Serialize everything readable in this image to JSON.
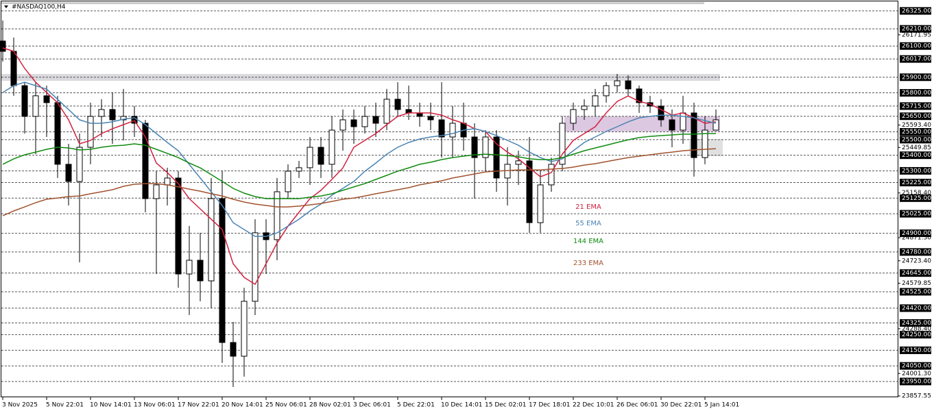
{
  "chart_data": {
    "type": "candlestick",
    "title": "#NASDAQ100,H4",
    "ylim": [
      23849,
      26373
    ],
    "categories": [
      "3 Nov 2025",
      null,
      null,
      null,
      "5 Nov 22:01",
      null,
      null,
      null,
      "10 Nov 14:01",
      null,
      null,
      null,
      "13 Nov 06:01",
      null,
      null,
      null,
      "17 Nov 22:01",
      null,
      null,
      null,
      "20 Nov 14:01",
      null,
      null,
      null,
      "25 Nov 06:01",
      null,
      null,
      null,
      "28 Nov 02:01",
      null,
      null,
      null,
      "3 Dec 06:01",
      null,
      null,
      null,
      "5 Dec 22:01",
      null,
      null,
      null,
      "10 Dec 14:01",
      null,
      null,
      null,
      "15 Dec 02:01",
      null,
      null,
      null,
      "17 Dec 18:01",
      null,
      null,
      null,
      "22 Dec 10:01",
      null,
      null,
      null,
      "26 Dec 06:01",
      null,
      null,
      null,
      "30 Dec 22:01",
      null,
      null,
      null,
      "5 Jan 14:01",
      null
    ],
    "open": [
      26132,
      26066,
      25846,
      25649,
      25781,
      25737,
      25342,
      25232,
      25451,
      25649,
      25693,
      25627,
      25649,
      25605,
      25122,
      25210,
      25254,
      24639,
      24727,
      24595,
      25122,
      24200,
      24112,
      24464,
      24903,
      24859,
      25166,
      25298,
      25320,
      25451,
      25342,
      25561,
      25627,
      25583,
      25649,
      25605,
      25759,
      25693,
      25671,
      25649,
      25627,
      25517,
      25605,
      25517,
      25385,
      25517,
      25254,
      25342,
      25364,
      24968,
      25210,
      25342,
      25605,
      25693,
      25715,
      25781,
      25846,
      25877,
      25825,
      25737,
      25715,
      25627,
      25561,
      25671,
      25385,
      25561
    ],
    "high": [
      26264,
      26154,
      25868,
      25868,
      25846,
      25781,
      25473,
      25539,
      25737,
      25759,
      25803,
      25825,
      25715,
      25627,
      25298,
      25320,
      25298,
      24947,
      24903,
      25254,
      25298,
      24332,
      24551,
      24990,
      24990,
      25254,
      25342,
      25364,
      25517,
      25517,
      25649,
      25693,
      25693,
      25715,
      25737,
      25825,
      25868,
      25846,
      25737,
      25737,
      25868,
      25715,
      25737,
      25605,
      25561,
      25561,
      25451,
      25429,
      25517,
      25298,
      25385,
      25649,
      25737,
      25759,
      25825,
      25868,
      25921,
      25912,
      25846,
      25781,
      25759,
      25693,
      25781,
      25737,
      25649,
      25693
    ],
    "low": [
      26000,
      25781,
      25539,
      25407,
      25517,
      25254,
      25078,
      24714,
      25342,
      25517,
      25473,
      25495,
      25517,
      25034,
      24639,
      25078,
      24551,
      24376,
      24464,
      24420,
      24069,
      23915,
      23981,
      24376,
      24639,
      24727,
      25122,
      25254,
      25210,
      25254,
      25254,
      25429,
      25473,
      25539,
      25517,
      25561,
      25649,
      25627,
      25583,
      25561,
      25385,
      25385,
      25429,
      25122,
      25298,
      25166,
      25078,
      25210,
      24903,
      24903,
      25166,
      25298,
      25561,
      25627,
      25649,
      25737,
      25803,
      25781,
      25671,
      25671,
      25583,
      25451,
      25473,
      25263,
      25342,
      25561
    ],
    "close": [
      26066,
      25846,
      25649,
      25781,
      25737,
      25342,
      25232,
      25451,
      25649,
      25693,
      25627,
      25649,
      25605,
      25122,
      25210,
      25254,
      24639,
      24727,
      24595,
      25122,
      24200,
      24112,
      24464,
      24903,
      24859,
      25166,
      25298,
      25320,
      25451,
      25342,
      25561,
      25627,
      25583,
      25649,
      25605,
      25759,
      25693,
      25671,
      25649,
      25627,
      25517,
      25605,
      25517,
      25385,
      25517,
      25254,
      25342,
      25364,
      24968,
      25210,
      25342,
      25605,
      25693,
      25715,
      25781,
      25846,
      25877,
      25825,
      25737,
      25715,
      25627,
      25561,
      25671,
      25385,
      25561,
      25627
    ],
    "series": [
      {
        "name": "21 EMA",
        "color": "#d2213e",
        "values": [
          26088,
          26066,
          25956,
          25868,
          25802,
          25736,
          25627,
          25473,
          25495,
          25539,
          25570,
          25596,
          25622,
          25517,
          25350,
          25289,
          25218,
          25122,
          25056,
          24990,
          24924,
          24705,
          24617,
          24573,
          24705,
          24837,
          24946,
          25034,
          25122,
          25175,
          25245,
          25319,
          25451,
          25495,
          25539,
          25596,
          25649,
          25671,
          25671,
          25671,
          25657,
          25627,
          25605,
          25570,
          25552,
          25473,
          25420,
          25377,
          25319,
          25262,
          25289,
          25407,
          25495,
          25539,
          25583,
          25671,
          25745,
          25780,
          25745,
          25728,
          25693,
          25657,
          25671,
          25640,
          25605,
          25614
        ]
      },
      {
        "name": "55 EMA",
        "color": "#4a84b4",
        "values": [
          25802,
          25846,
          25868,
          25846,
          25824,
          25758,
          25693,
          25627,
          25605,
          25605,
          25614,
          25631,
          25640,
          25596,
          25539,
          25482,
          25429,
          25341,
          25254,
          25166,
          25078,
          24968,
          24924,
          24880,
          24880,
          24902,
          24946,
          24990,
          25043,
          25087,
          25144,
          25188,
          25232,
          25297,
          25350,
          25407,
          25451,
          25482,
          25504,
          25517,
          25526,
          25539,
          25561,
          25570,
          25552,
          25526,
          25495,
          25464,
          25420,
          25385,
          25359,
          25377,
          25429,
          25482,
          25517,
          25552,
          25583,
          25614,
          25640,
          25649,
          25657,
          25657,
          25649,
          25640,
          25622,
          25605
        ]
      },
      {
        "name": "144 EMA",
        "color": "#0f8a0f",
        "values": [
          25342,
          25377,
          25403,
          25420,
          25438,
          25451,
          25447,
          25434,
          25438,
          25451,
          25460,
          25464,
          25473,
          25464,
          25438,
          25412,
          25385,
          25350,
          25319,
          25276,
          25232,
          25188,
          25157,
          25135,
          25122,
          25122,
          25122,
          25122,
          25131,
          25139,
          25153,
          25175,
          25197,
          25218,
          25245,
          25271,
          25298,
          25319,
          25342,
          25355,
          25372,
          25385,
          25394,
          25403,
          25407,
          25403,
          25398,
          25390,
          25377,
          25372,
          25372,
          25385,
          25407,
          25429,
          25447,
          25464,
          25482,
          25499,
          25513,
          25521,
          25526,
          25530,
          25535,
          25535,
          25539,
          25539
        ]
      },
      {
        "name": "233 EMA",
        "color": "#a0522d",
        "values": [
          25012,
          25043,
          25069,
          25096,
          25118,
          25126,
          25135,
          25139,
          25153,
          25166,
          25179,
          25201,
          25214,
          25218,
          25218,
          25210,
          25197,
          25183,
          25170,
          25153,
          25139,
          25118,
          25100,
          25087,
          25078,
          25069,
          25069,
          25074,
          25082,
          25091,
          25104,
          25118,
          25126,
          25139,
          25153,
          25166,
          25179,
          25192,
          25210,
          25223,
          25236,
          25254,
          25267,
          25280,
          25293,
          25298,
          25302,
          25306,
          25306,
          25306,
          25311,
          25315,
          25324,
          25337,
          25346,
          25359,
          25372,
          25385,
          25394,
          25403,
          25412,
          25420,
          25429,
          25434,
          25438,
          25442
        ]
      }
    ],
    "zones": [
      {
        "low": 25877,
        "high": 25921,
        "color": "#d9d9de"
      },
      {
        "low": 25552,
        "high": 25649,
        "color": "#dcc8e0"
      },
      {
        "low": 25394,
        "high": 25504,
        "color": "#e0e0e0"
      }
    ],
    "levels": [
      {
        "value": 26325,
        "label": "26325.00"
      },
      {
        "value": 26210,
        "label": "26210.00"
      },
      {
        "value": 26100,
        "label": "26100.00"
      },
      {
        "value": 26017,
        "label": "26017.00"
      },
      {
        "value": 25900,
        "label": "25900.00"
      },
      {
        "value": 25800,
        "label": "25800.00"
      },
      {
        "value": 25715,
        "label": "25715.00"
      },
      {
        "value": 25650,
        "label": "25650.00"
      },
      {
        "value": 25550,
        "label": "25550.00"
      },
      {
        "value": 25500,
        "label": "25500.00"
      },
      {
        "value": 25400,
        "label": "25400.00"
      },
      {
        "value": 25300,
        "label": "25300.00"
      },
      {
        "value": 25225,
        "label": "25225.00"
      },
      {
        "value": 25125,
        "label": "25125.00"
      },
      {
        "value": 25025,
        "label": "25025.00"
      },
      {
        "value": 24900,
        "label": "24900.00"
      },
      {
        "value": 24780,
        "label": "24780.00"
      },
      {
        "value": 24645,
        "label": "24645.00"
      },
      {
        "value": 24525,
        "label": "24525.00"
      },
      {
        "value": 24420,
        "label": "24420.00"
      },
      {
        "value": 24325,
        "label": "24325.00"
      },
      {
        "value": 24250,
        "label": "24250.00"
      },
      {
        "value": 24150,
        "label": "24150.00"
      },
      {
        "value": 24050,
        "label": "24050.00"
      },
      {
        "value": 23950,
        "label": "23950.00"
      }
    ],
    "yticks": [
      {
        "value": 26171.95,
        "label": "26171.95"
      },
      {
        "value": 25593.4,
        "label": "25593.40"
      },
      {
        "value": 25449.85,
        "label": "25449.85"
      },
      {
        "value": 25158.4,
        "label": "25158.40"
      },
      {
        "value": 24871.3,
        "label": "24871.30"
      },
      {
        "value": 24723.4,
        "label": "24723.40"
      },
      {
        "value": 24579.85,
        "label": "24579.85"
      },
      {
        "value": 24288.4,
        "label": "24288.40"
      },
      {
        "value": 24001.3,
        "label": "24001.30"
      },
      {
        "value": 23857.55,
        "label": "23857.55"
      }
    ]
  }
}
